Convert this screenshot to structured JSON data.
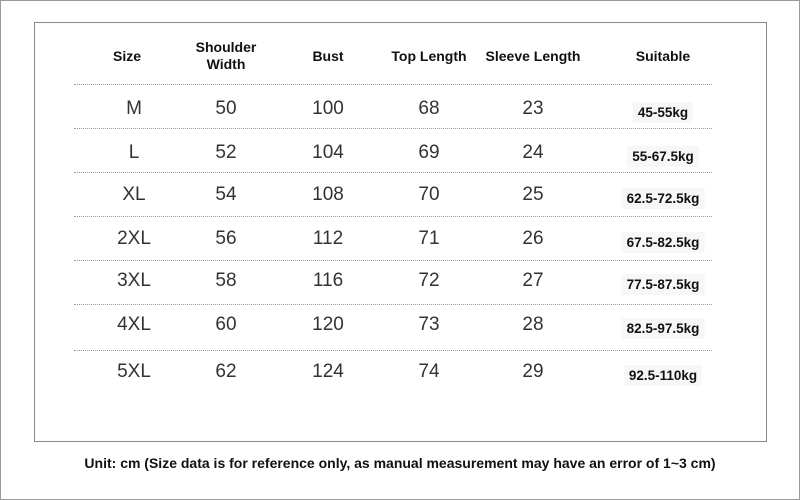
{
  "table": {
    "headers": [
      "Size",
      "Shoulder Width",
      "Bust",
      "Top Length",
      "Sleeve Length",
      "Suitable"
    ],
    "rows": [
      [
        "M",
        "50",
        "100",
        "68",
        "23",
        "45-55kg"
      ],
      [
        "L",
        "52",
        "104",
        "69",
        "24",
        "55-67.5kg"
      ],
      [
        "XL",
        "54",
        "108",
        "70",
        "25",
        "62.5-72.5kg"
      ],
      [
        "2XL",
        "56",
        "112",
        "71",
        "26",
        "67.5-82.5kg"
      ],
      [
        "3XL",
        "58",
        "116",
        "72",
        "27",
        "77.5-87.5kg"
      ],
      [
        "4XL",
        "60",
        "120",
        "73",
        "28",
        "82.5-97.5kg"
      ],
      [
        "5XL",
        "62",
        "124",
        "74",
        "29",
        "92.5-110kg"
      ]
    ]
  },
  "note": "Unit: cm (Size data is for reference only, as manual measurement may have an error of 1~3 cm)"
}
